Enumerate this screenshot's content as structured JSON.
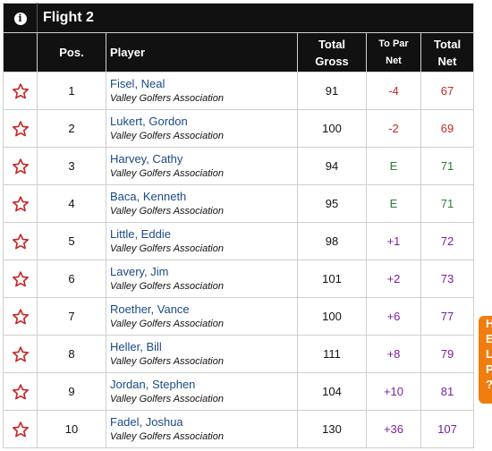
{
  "flight": {
    "title": "Flight 2",
    "info_icon": "info-icon"
  },
  "columns": {
    "pos": "Pos.",
    "player": "Player",
    "total_gross_1": "Total",
    "total_gross_2": "Gross",
    "to_par_1": "To Par",
    "to_par_2": "Net",
    "total_net_1": "Total",
    "total_net_2": "Net"
  },
  "colors": {
    "over": "#7a1fa2",
    "under": "#c62828",
    "even": "#2e7d32",
    "star": "#c62828",
    "header": "#111111",
    "player_link": "#1a4a85"
  },
  "rows": [
    {
      "pos": "1",
      "name": "Fisel, Neal",
      "assoc": "Valley Golfers Association",
      "gross": "91",
      "topar": "-4",
      "net": "67",
      "status": "under"
    },
    {
      "pos": "2",
      "name": "Lukert, Gordon",
      "assoc": "Valley Golfers Association",
      "gross": "100",
      "topar": "-2",
      "net": "69",
      "status": "under"
    },
    {
      "pos": "3",
      "name": "Harvey, Cathy",
      "assoc": "Valley Golfers Association",
      "gross": "94",
      "topar": "E",
      "net": "71",
      "status": "even"
    },
    {
      "pos": "4",
      "name": "Baca, Kenneth",
      "assoc": "Valley Golfers Association",
      "gross": "95",
      "topar": "E",
      "net": "71",
      "status": "even"
    },
    {
      "pos": "5",
      "name": "Little, Eddie",
      "assoc": "Valley Golfers Association",
      "gross": "98",
      "topar": "+1",
      "net": "72",
      "status": "over"
    },
    {
      "pos": "6",
      "name": "Lavery, Jim",
      "assoc": "Valley Golfers Association",
      "gross": "101",
      "topar": "+2",
      "net": "73",
      "status": "over"
    },
    {
      "pos": "7",
      "name": "Roether, Vance",
      "assoc": "Valley Golfers Association",
      "gross": "100",
      "topar": "+6",
      "net": "77",
      "status": "over"
    },
    {
      "pos": "8",
      "name": "Heller, Bill",
      "assoc": "Valley Golfers Association",
      "gross": "111",
      "topar": "+8",
      "net": "79",
      "status": "over"
    },
    {
      "pos": "9",
      "name": "Jordan, Stephen",
      "assoc": "Valley Golfers Association",
      "gross": "104",
      "topar": "+10",
      "net": "81",
      "status": "over"
    },
    {
      "pos": "10",
      "name": "Fadel, Joshua",
      "assoc": "Valley Golfers Association",
      "gross": "130",
      "topar": "+36",
      "net": "107",
      "status": "over"
    }
  ],
  "side_tab": {
    "letters": [
      "H",
      "E",
      "L",
      "P",
      "?"
    ]
  }
}
